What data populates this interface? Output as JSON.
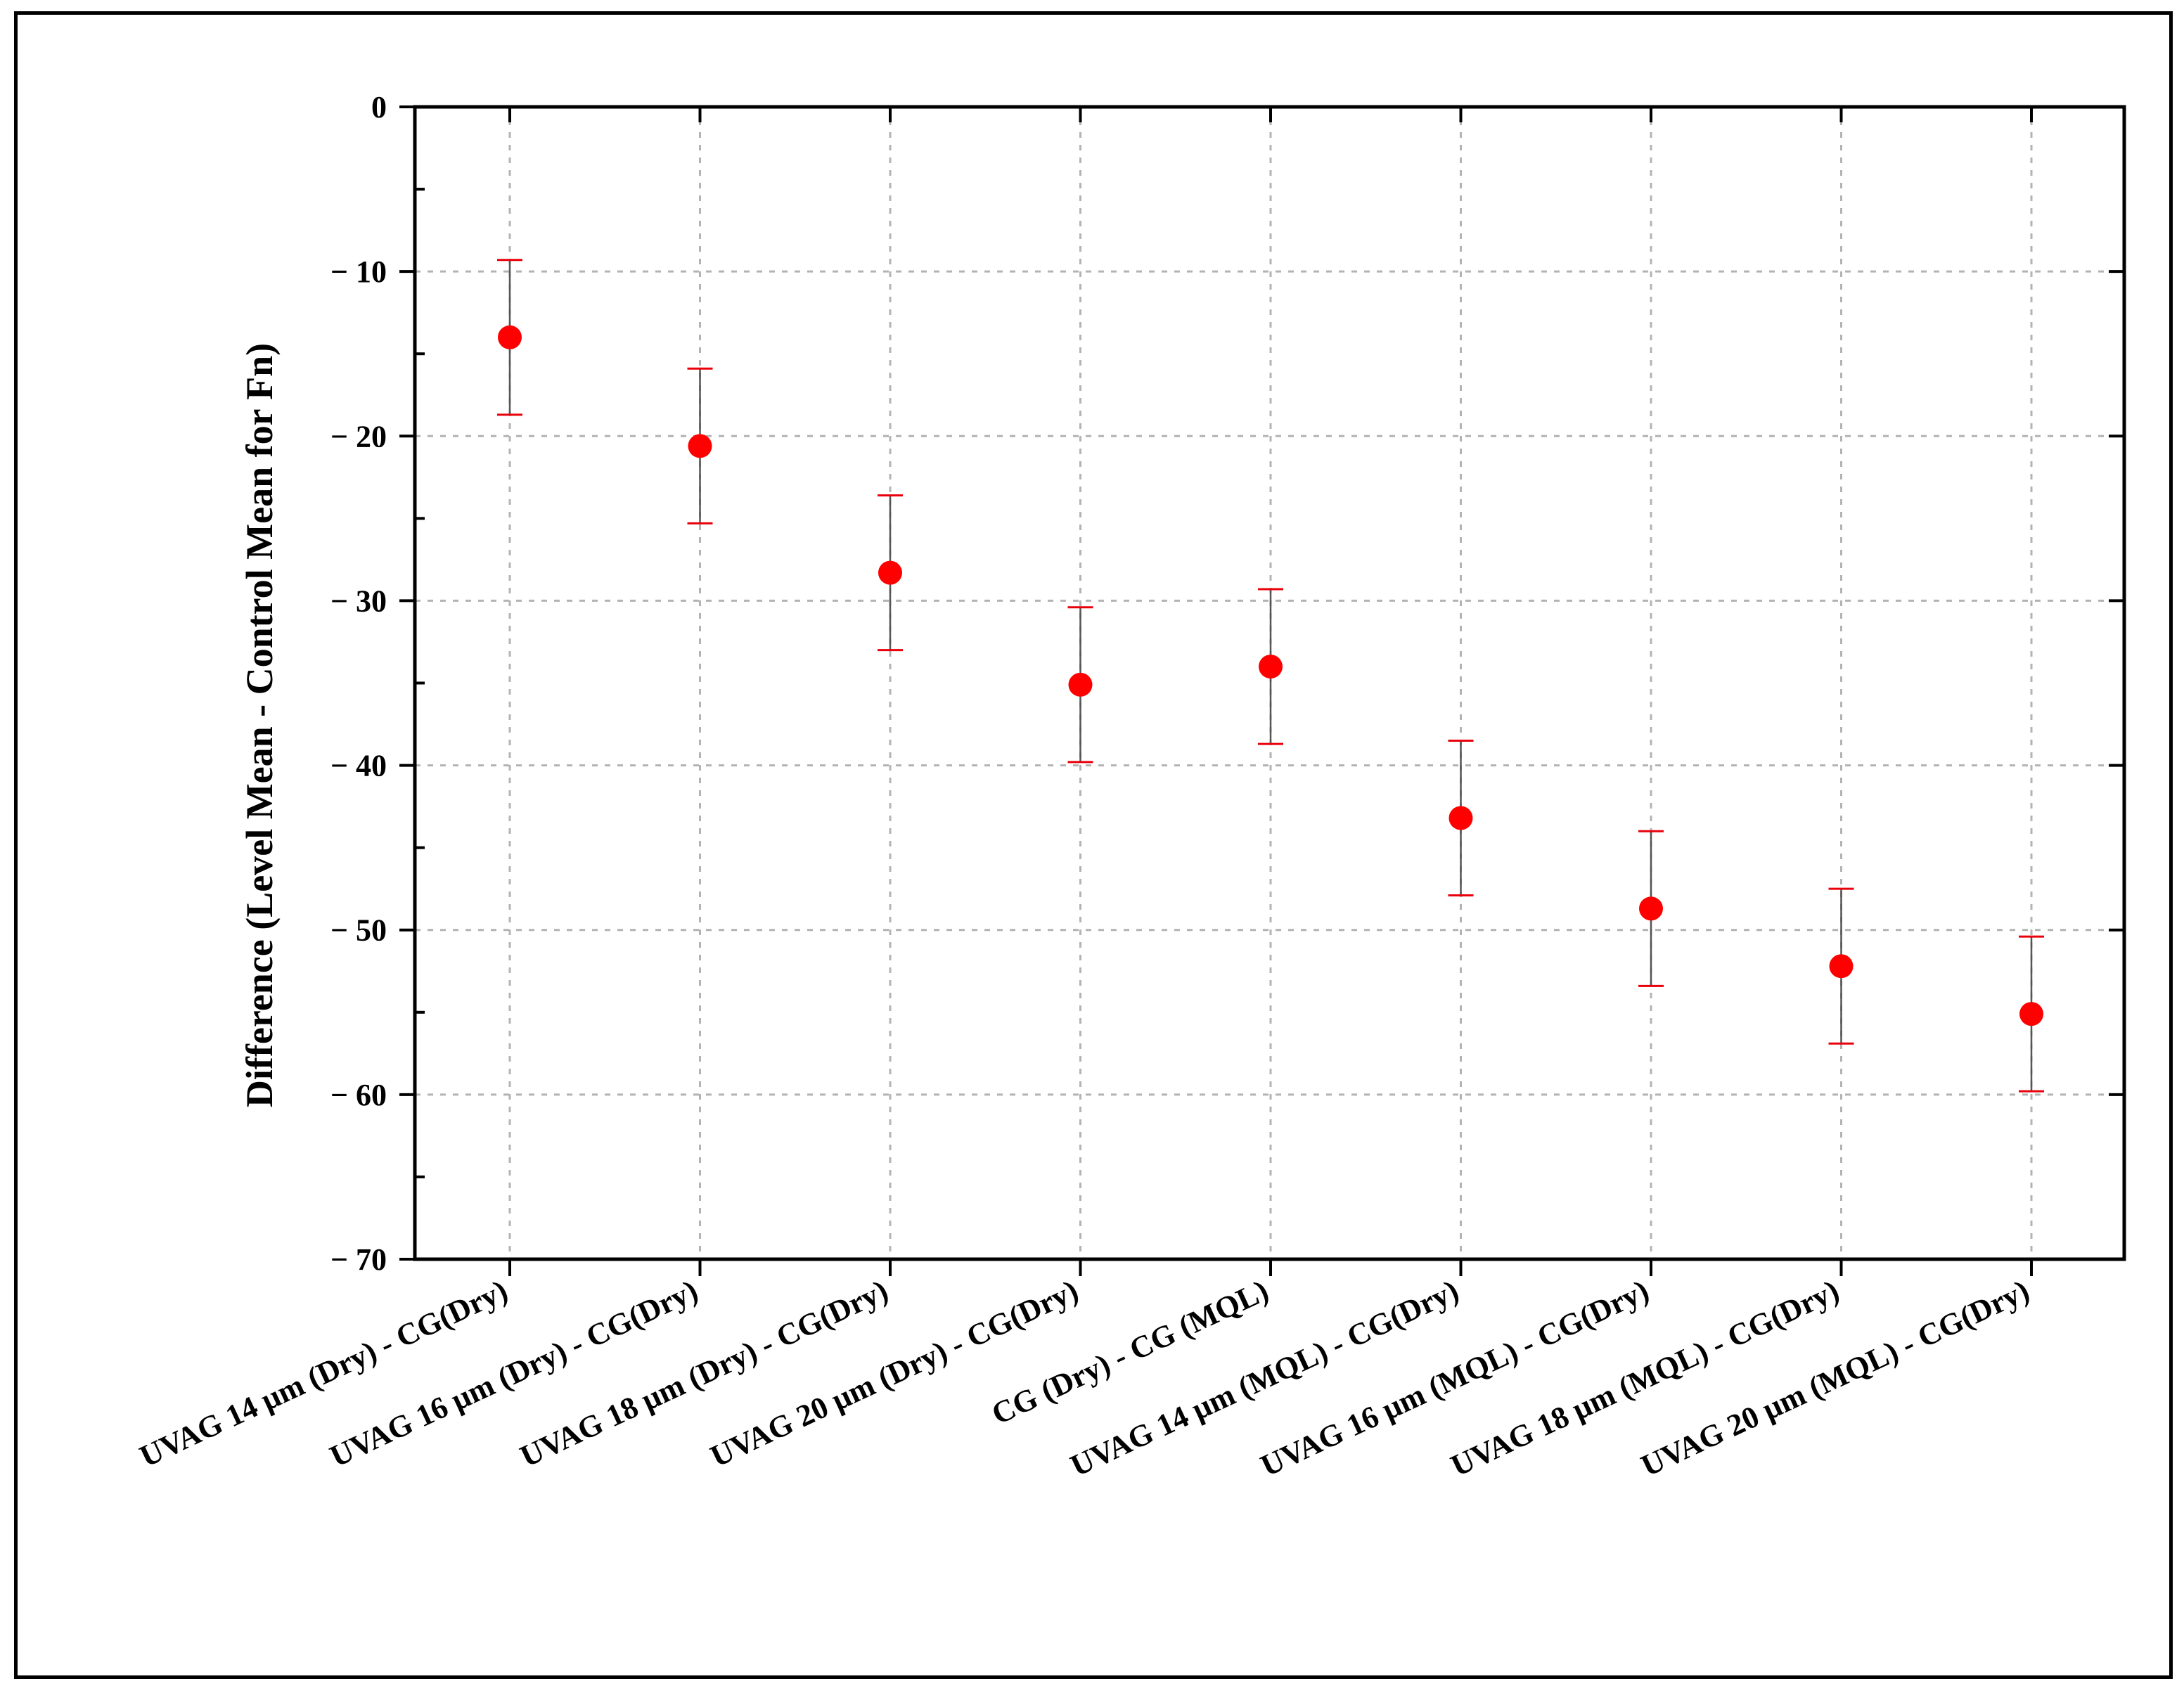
{
  "chart_data": {
    "type": "scatter",
    "title": "",
    "xlabel": "",
    "ylabel": "Difference (Level Mean - Control Mean for Fn)",
    "ylim": [
      -70,
      0
    ],
    "yticks": [
      0,
      -10,
      -20,
      -30,
      -40,
      -50,
      -60,
      -70
    ],
    "ytick_labels": [
      "0",
      "− 10",
      "− 20",
      "− 30",
      "− 40",
      "− 50",
      "− 60",
      "− 70"
    ],
    "grid": true,
    "legend": "none",
    "marker_color": "#ff0000",
    "errorbar_color": "#e8000b",
    "categories": [
      "UVAG 14 µm (Dry) - CG(Dry)",
      "UVAG 16 µm (Dry) - CG(Dry)",
      "UVAG 18 µm  (Dry) - CG(Dry)",
      "UVAG 20 µm (Dry) - CG(Dry)",
      "CG (Dry) - CG (MQL)",
      "UVAG 14 µm (MQL) - CG(Dry)",
      "UVAG 16 µm (MQL) - CG(Dry)",
      "UVAG 18 µm (MQL) - CG(Dry)",
      "UVAG 20 µm (MQL) - CG(Dry)"
    ],
    "values": [
      -14.0,
      -20.6,
      -28.3,
      -35.1,
      -34.0,
      -43.2,
      -48.7,
      -52.2,
      -55.1
    ],
    "upper": [
      -9.3,
      -15.9,
      -23.6,
      -30.4,
      -29.3,
      -38.5,
      -44.0,
      -47.5,
      -50.4
    ],
    "lower": [
      -18.7,
      -25.3,
      -33.0,
      -39.8,
      -38.7,
      -47.9,
      -53.4,
      -56.9,
      -59.8
    ]
  }
}
